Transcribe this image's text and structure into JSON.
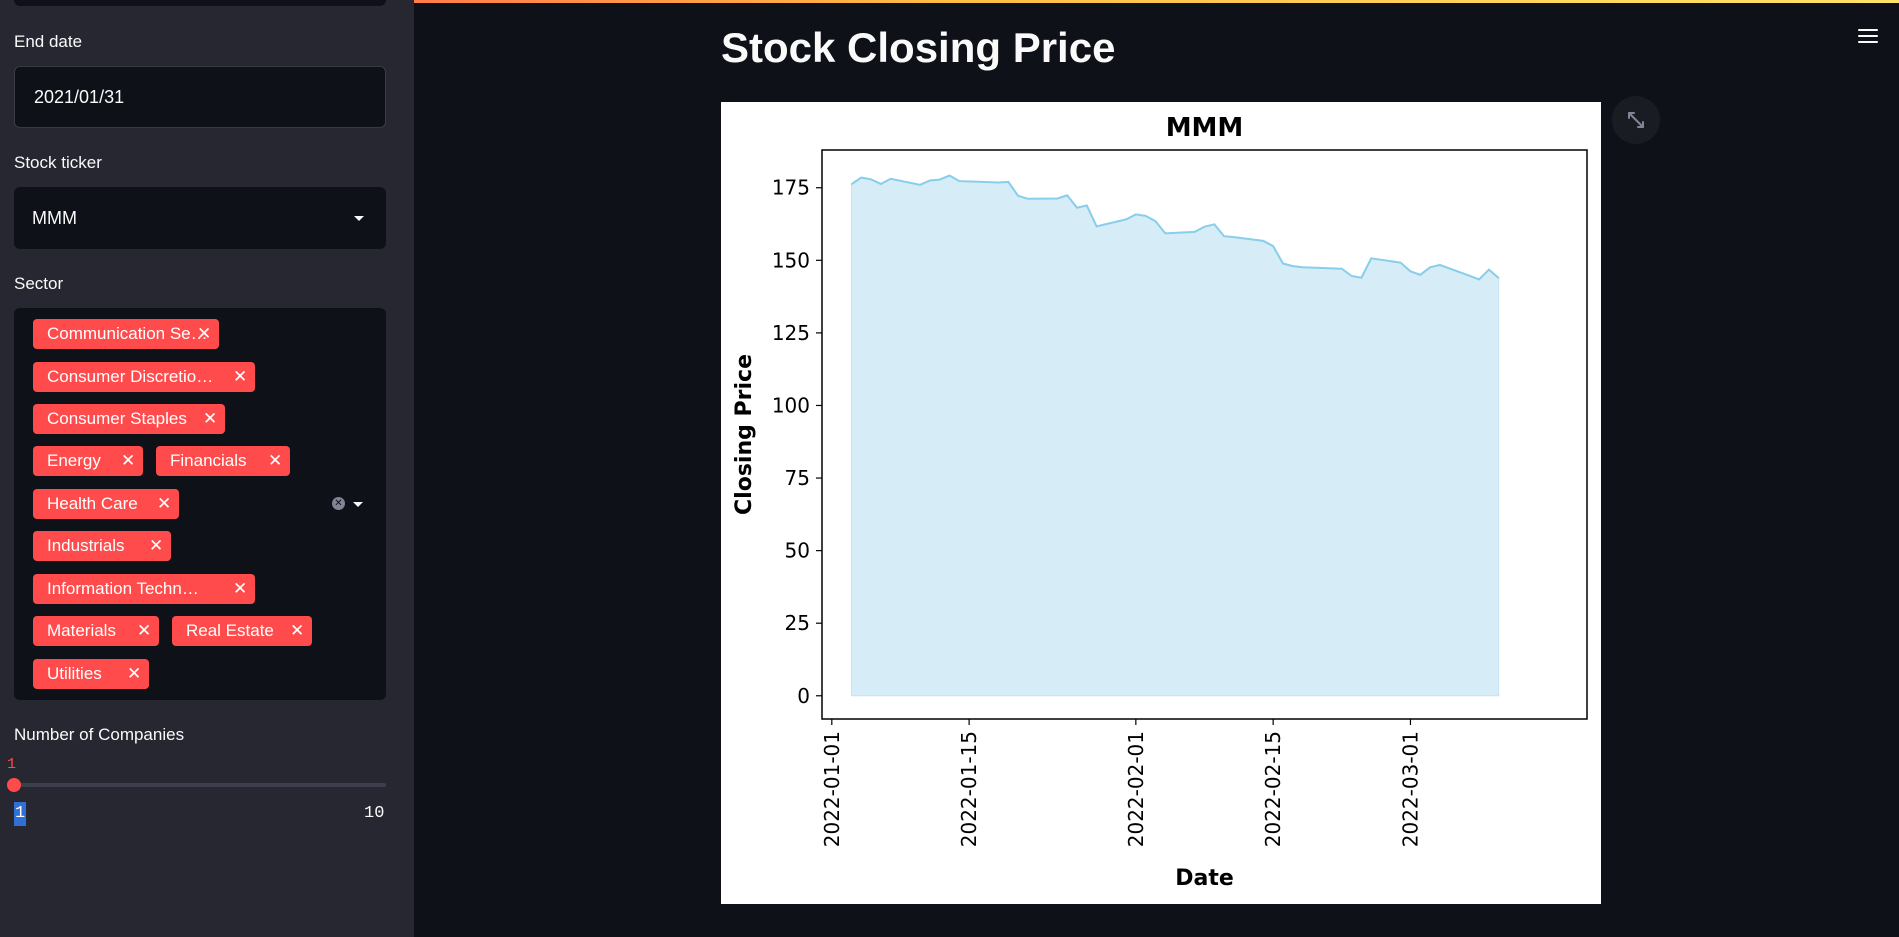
{
  "sidebar": {
    "end_date": {
      "label": "End date",
      "value": "2021/01/31"
    },
    "stock_ticker": {
      "label": "Stock ticker",
      "value": "MMM"
    },
    "sector": {
      "label": "Sector",
      "tags": [
        "Communication Se…",
        "Consumer Discretio…",
        "Consumer Staples",
        "Energy",
        "Financials",
        "Health Care",
        "Industrials",
        "Information Techn…",
        "Materials",
        "Real Estate",
        "Utilities"
      ]
    },
    "num_companies": {
      "label": "Number of Companies",
      "value": "1",
      "min": "1",
      "max": "10"
    }
  },
  "main": {
    "title": "Stock Closing Price"
  },
  "icons": {
    "menu": "hamburger-menu-icon",
    "expand": "expand-icon",
    "close": "close-icon",
    "caret": "chevron-down-icon",
    "clear": "clear-all-icon"
  },
  "colors": {
    "accent": "#ff4b4b",
    "fill": "#d6ecf6",
    "line": "#87ceeb",
    "sidebar": "#262730",
    "background": "#0e1117"
  },
  "chart_data": {
    "type": "area",
    "title": "MMM",
    "xlabel": "Date",
    "ylabel": "Closing Price",
    "ylim": [
      -8,
      188
    ],
    "xlim": [
      "2021-12-31",
      "2022-03-19"
    ],
    "yticks": [
      0,
      25,
      50,
      75,
      100,
      125,
      150,
      175
    ],
    "xticks": [
      "2022-01-01",
      "2022-01-15",
      "2022-02-01",
      "2022-02-15",
      "2022-03-01"
    ],
    "grid": false,
    "series": [
      {
        "x": [
          "2022-01-03",
          "2022-01-04",
          "2022-01-05",
          "2022-01-06",
          "2022-01-07",
          "2022-01-10",
          "2022-01-11",
          "2022-01-12",
          "2022-01-13",
          "2022-01-14",
          "2022-01-18",
          "2022-01-19",
          "2022-01-20",
          "2022-01-21",
          "2022-01-24",
          "2022-01-25",
          "2022-01-26",
          "2022-01-27",
          "2022-01-28",
          "2022-01-31",
          "2022-02-01",
          "2022-02-02",
          "2022-02-03",
          "2022-02-04",
          "2022-02-07",
          "2022-02-08",
          "2022-02-09",
          "2022-02-10",
          "2022-02-11",
          "2022-02-14",
          "2022-02-15",
          "2022-02-16",
          "2022-02-17",
          "2022-02-18",
          "2022-02-22",
          "2022-02-23",
          "2022-02-24",
          "2022-02-25",
          "2022-02-28",
          "2022-03-01",
          "2022-03-02",
          "2022-03-03",
          "2022-03-04",
          "2022-03-07",
          "2022-03-08",
          "2022-03-09",
          "2022-03-10"
        ],
        "y": [
          176.2,
          178.5,
          177.9,
          176.3,
          178.1,
          176.0,
          177.5,
          177.8,
          179.2,
          177.3,
          176.8,
          177.0,
          172.2,
          171.2,
          171.3,
          172.4,
          168.1,
          168.9,
          161.7,
          164.1,
          165.8,
          165.3,
          163.5,
          159.3,
          159.8,
          161.6,
          162.4,
          158.3,
          158.0,
          156.7,
          154.9,
          148.9,
          148.0,
          147.6,
          147.1,
          144.6,
          144.0,
          150.7,
          149.2,
          146.2,
          145.0,
          147.6,
          148.4,
          144.7,
          143.4,
          146.8,
          143.9
        ]
      }
    ]
  }
}
